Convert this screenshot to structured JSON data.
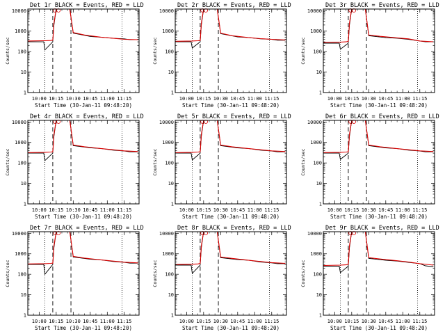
{
  "chart_data": {
    "type": "line",
    "shared": {
      "title_suffix": "BLACK = Events, RED = LLD",
      "ylabel": "Counts/sec",
      "xlabel": "Start Time (30-Jan-11 09:48:20)",
      "yscale": "log",
      "ylim": [
        1,
        12000
      ],
      "xlim": [
        "09:50",
        "11:28"
      ],
      "ytick_labels": [
        "10000",
        "1000",
        "100",
        "10",
        "1"
      ],
      "ytick_values": [
        10000,
        1000,
        100,
        10,
        1
      ],
      "xtick_labels": [
        "10:00",
        "10:15",
        "10:30",
        "10:45",
        "11:00",
        "11:15"
      ],
      "dotted_vlines": [
        "10:05",
        "11:13"
      ],
      "dashed_vlines": [
        "10:12",
        "10:28"
      ],
      "legend": [
        {
          "name": "Events",
          "color": "#000000"
        },
        {
          "name": "LLD",
          "color": "#dd0000"
        }
      ]
    },
    "panels": [
      {
        "title": "Det 1r",
        "base": 300,
        "series": [
          {
            "name": "Events",
            "color": "#000000",
            "x": [
              "09:50",
              "10:04",
              "10:05",
              "10:12",
              "10:13",
              "10:15",
              "10:22",
              "10:27",
              "10:30",
              "10:45",
              "10:55",
              "11:05",
              "11:15",
              "11:20",
              "11:27"
            ],
            "y": [
              300,
              300,
              120,
              300,
              2000,
              12000,
              12000,
              12000,
              800,
              550,
              500,
              450,
              420,
              380,
              380
            ]
          },
          {
            "name": "LLD",
            "color": "#dd0000",
            "x": [
              "09:50",
              "10:05",
              "10:10",
              "10:12",
              "10:13",
              "10:15",
              "10:22",
              "10:27",
              "10:30",
              "10:40",
              "10:55",
              "11:05",
              "11:15",
              "11:27"
            ],
            "y": [
              330,
              340,
              350,
              360,
              2500,
              12000,
              12000,
              12000,
              850,
              650,
              500,
              450,
              400,
              380
            ]
          }
        ]
      },
      {
        "title": "Det 2r",
        "base": 300,
        "series": [
          {
            "name": "Events",
            "color": "#000000",
            "x": [
              "09:50",
              "10:04",
              "10:05",
              "10:12",
              "10:13",
              "10:15",
              "10:22",
              "10:27",
              "10:30",
              "10:45",
              "10:55",
              "11:05",
              "11:15",
              "11:20",
              "11:27"
            ],
            "y": [
              300,
              300,
              150,
              300,
              2000,
              12000,
              12000,
              12000,
              750,
              520,
              480,
              420,
              400,
              360,
              360
            ]
          },
          {
            "name": "LLD",
            "color": "#dd0000",
            "x": [
              "09:50",
              "10:05",
              "10:10",
              "10:12",
              "10:13",
              "10:15",
              "10:22",
              "10:27",
              "10:30",
              "10:40",
              "10:55",
              "11:05",
              "11:15",
              "11:27"
            ],
            "y": [
              320,
              330,
              340,
              350,
              2500,
              12000,
              12000,
              12000,
              800,
              600,
              480,
              430,
              400,
              370
            ]
          }
        ]
      },
      {
        "title": "Det 3r",
        "base": 260,
        "series": [
          {
            "name": "Events",
            "color": "#000000",
            "x": [
              "09:50",
              "10:04",
              "10:05",
              "10:12",
              "10:13",
              "10:15",
              "10:22",
              "10:27",
              "10:30",
              "10:45",
              "10:55",
              "11:05",
              "11:15",
              "11:20",
              "11:27"
            ],
            "y": [
              260,
              260,
              130,
              260,
              2000,
              12000,
              12000,
              12000,
              600,
              480,
              450,
              400,
              330,
              300,
              300
            ]
          },
          {
            "name": "LLD",
            "color": "#dd0000",
            "x": [
              "09:50",
              "10:05",
              "10:10",
              "10:12",
              "10:13",
              "10:15",
              "10:22",
              "10:27",
              "10:30",
              "10:40",
              "10:55",
              "11:05",
              "11:15",
              "11:27"
            ],
            "y": [
              280,
              290,
              300,
              320,
              2500,
              12000,
              12000,
              12000,
              650,
              560,
              470,
              420,
              330,
              300
            ]
          }
        ]
      },
      {
        "title": "Det 4r",
        "base": 300,
        "series": [
          {
            "name": "Events",
            "color": "#000000",
            "x": [
              "09:50",
              "10:04",
              "10:05",
              "10:12",
              "10:13",
              "10:15",
              "10:22",
              "10:27",
              "10:30",
              "10:45",
              "10:55",
              "11:05",
              "11:15",
              "11:20",
              "11:27"
            ],
            "y": [
              300,
              300,
              130,
              300,
              2000,
              12000,
              12000,
              12000,
              700,
              550,
              500,
              420,
              380,
              350,
              350
            ]
          },
          {
            "name": "LLD",
            "color": "#dd0000",
            "x": [
              "09:50",
              "10:05",
              "10:10",
              "10:12",
              "10:13",
              "10:15",
              "10:22",
              "10:27",
              "10:30",
              "10:40",
              "10:55",
              "11:05",
              "11:15",
              "11:27"
            ],
            "y": [
              320,
              330,
              340,
              350,
              2500,
              12000,
              12000,
              12000,
              750,
              620,
              500,
              440,
              390,
              360
            ]
          }
        ]
      },
      {
        "title": "Det 5r",
        "base": 300,
        "series": [
          {
            "name": "Events",
            "color": "#000000",
            "x": [
              "09:50",
              "10:04",
              "10:05",
              "10:12",
              "10:13",
              "10:15",
              "10:22",
              "10:27",
              "10:30",
              "10:45",
              "10:55",
              "11:05",
              "11:15",
              "11:20",
              "11:27"
            ],
            "y": [
              300,
              300,
              140,
              300,
              2000,
              12000,
              12000,
              12000,
              700,
              540,
              500,
              420,
              380,
              350,
              350
            ]
          },
          {
            "name": "LLD",
            "color": "#dd0000",
            "x": [
              "09:50",
              "10:05",
              "10:10",
              "10:12",
              "10:13",
              "10:15",
              "10:22",
              "10:27",
              "10:30",
              "10:40",
              "10:55",
              "11:05",
              "11:15",
              "11:27"
            ],
            "y": [
              320,
              330,
              340,
              350,
              2500,
              12000,
              12000,
              12000,
              750,
              620,
              500,
              440,
              390,
              360
            ]
          }
        ]
      },
      {
        "title": "Det 6r",
        "base": 300,
        "series": [
          {
            "name": "Events",
            "color": "#000000",
            "x": [
              "09:50",
              "10:04",
              "10:05",
              "10:12",
              "10:13",
              "10:15",
              "10:22",
              "10:27",
              "10:30",
              "10:45",
              "10:55",
              "11:05",
              "11:15",
              "11:20",
              "11:27"
            ],
            "y": [
              300,
              300,
              150,
              300,
              2000,
              12000,
              12000,
              12000,
              700,
              540,
              500,
              420,
              380,
              350,
              350
            ]
          },
          {
            "name": "LLD",
            "color": "#dd0000",
            "x": [
              "09:50",
              "10:05",
              "10:10",
              "10:12",
              "10:13",
              "10:15",
              "10:22",
              "10:27",
              "10:30",
              "10:40",
              "10:55",
              "11:05",
              "11:15",
              "11:27"
            ],
            "y": [
              320,
              330,
              340,
              350,
              2500,
              12000,
              12000,
              12000,
              750,
              620,
              500,
              440,
              390,
              360
            ]
          }
        ]
      },
      {
        "title": "Det 7r",
        "base": 300,
        "series": [
          {
            "name": "Events",
            "color": "#000000",
            "x": [
              "09:50",
              "10:04",
              "10:05",
              "10:12",
              "10:13",
              "10:15",
              "10:22",
              "10:27",
              "10:30",
              "10:45",
              "10:55",
              "11:05",
              "11:15",
              "11:20",
              "11:27"
            ],
            "y": [
              300,
              300,
              100,
              300,
              2000,
              12000,
              12000,
              12000,
              700,
              540,
              500,
              420,
              380,
              350,
              350
            ]
          },
          {
            "name": "LLD",
            "color": "#dd0000",
            "x": [
              "09:50",
              "10:05",
              "10:10",
              "10:12",
              "10:13",
              "10:15",
              "10:22",
              "10:27",
              "10:30",
              "10:40",
              "10:55",
              "11:05",
              "11:15",
              "11:27"
            ],
            "y": [
              320,
              330,
              340,
              350,
              2500,
              12000,
              12000,
              12000,
              750,
              620,
              500,
              440,
              390,
              360
            ]
          }
        ]
      },
      {
        "title": "Det 8r",
        "base": 280,
        "series": [
          {
            "name": "Events",
            "color": "#000000",
            "x": [
              "09:50",
              "10:04",
              "10:05",
              "10:12",
              "10:13",
              "10:15",
              "10:22",
              "10:27",
              "10:30",
              "10:45",
              "10:55",
              "11:05",
              "11:15",
              "11:20",
              "11:27"
            ],
            "y": [
              280,
              280,
              110,
              280,
              2000,
              12000,
              12000,
              12000,
              650,
              520,
              480,
              400,
              360,
              330,
              330
            ]
          },
          {
            "name": "LLD",
            "color": "#dd0000",
            "x": [
              "09:50",
              "10:05",
              "10:10",
              "10:12",
              "10:13",
              "10:15",
              "10:22",
              "10:27",
              "10:30",
              "10:40",
              "10:55",
              "11:05",
              "11:15",
              "11:27"
            ],
            "y": [
              300,
              310,
              320,
              340,
              2500,
              12000,
              12000,
              12000,
              700,
              600,
              480,
              420,
              370,
              340
            ]
          }
        ]
      },
      {
        "title": "Det 9r",
        "base": 250,
        "series": [
          {
            "name": "Events",
            "color": "#000000",
            "x": [
              "09:50",
              "10:04",
              "10:05",
              "10:12",
              "10:13",
              "10:15",
              "10:22",
              "10:27",
              "10:30",
              "10:45",
              "10:55",
              "11:05",
              "11:15",
              "11:20",
              "11:27"
            ],
            "y": [
              250,
              250,
              120,
              250,
              2000,
              12000,
              12000,
              12000,
              600,
              480,
              440,
              380,
              330,
              260,
              230
            ]
          },
          {
            "name": "LLD",
            "color": "#dd0000",
            "x": [
              "09:50",
              "10:05",
              "10:10",
              "10:12",
              "10:13",
              "10:15",
              "10:22",
              "10:27",
              "10:30",
              "10:40",
              "10:55",
              "11:05",
              "11:15",
              "11:27"
            ],
            "y": [
              270,
              280,
              290,
              310,
              2500,
              12000,
              12000,
              12000,
              650,
              560,
              460,
              400,
              330,
              280
            ]
          }
        ]
      }
    ]
  }
}
